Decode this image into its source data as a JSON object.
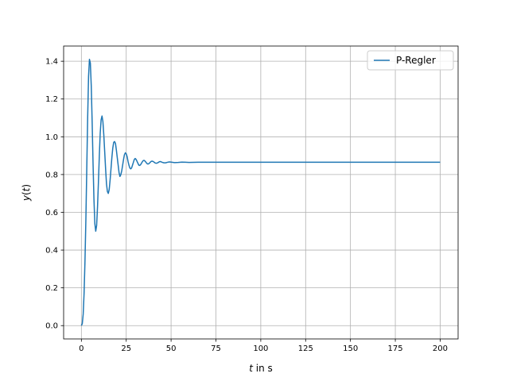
{
  "chart_data": {
    "type": "line",
    "title": "",
    "xlabel": {
      "var": "t",
      "suffix": " in s"
    },
    "ylabel": {
      "var": "y",
      "mid": "(",
      "arg": "t",
      "end": ")"
    },
    "xlim": [
      -9.9,
      210
    ],
    "ylim": [
      -0.0705,
      1.4805
    ],
    "xticks": [
      0,
      25,
      50,
      75,
      100,
      125,
      150,
      175,
      200
    ],
    "yticks": [
      0.0,
      0.2,
      0.4,
      0.6,
      0.8,
      1.0,
      1.2,
      1.4
    ],
    "xtick_labels": [
      "0",
      "25",
      "50",
      "75",
      "100",
      "125",
      "150",
      "175",
      "200"
    ],
    "ytick_labels": [
      "0.0",
      "0.2",
      "0.4",
      "0.6",
      "0.8",
      "1.0",
      "1.2",
      "1.4"
    ],
    "grid": true,
    "legend": {
      "placement": "top-right"
    },
    "series": [
      {
        "name": "P-Regler",
        "color": "#1f77b4",
        "points": [
          [
            0,
            0.0
          ],
          [
            0.5,
            0.01
          ],
          [
            1,
            0.06
          ],
          [
            1.5,
            0.17
          ],
          [
            2,
            0.34
          ],
          [
            2.5,
            0.56
          ],
          [
            3,
            0.83
          ],
          [
            3.5,
            1.1
          ],
          [
            4,
            1.32
          ],
          [
            4.5,
            1.41
          ],
          [
            5,
            1.39
          ],
          [
            5.5,
            1.27
          ],
          [
            6,
            1.08
          ],
          [
            6.5,
            0.86
          ],
          [
            7,
            0.67
          ],
          [
            7.5,
            0.54
          ],
          [
            8,
            0.5
          ],
          [
            8.5,
            0.53
          ],
          [
            9,
            0.63
          ],
          [
            9.5,
            0.76
          ],
          [
            10,
            0.9
          ],
          [
            10.5,
            1.02
          ],
          [
            11,
            1.09
          ],
          [
            11.5,
            1.11
          ],
          [
            12,
            1.08
          ],
          [
            12.5,
            1.01
          ],
          [
            13,
            0.92
          ],
          [
            13.5,
            0.83
          ],
          [
            14,
            0.75
          ],
          [
            14.5,
            0.71
          ],
          [
            15,
            0.7
          ],
          [
            15.5,
            0.72
          ],
          [
            16,
            0.77
          ],
          [
            16.5,
            0.83
          ],
          [
            17,
            0.89
          ],
          [
            17.5,
            0.94
          ],
          [
            18,
            0.97
          ],
          [
            18.5,
            0.975
          ],
          [
            19,
            0.965
          ],
          [
            19.5,
            0.93
          ],
          [
            20,
            0.89
          ],
          [
            20.5,
            0.85
          ],
          [
            21,
            0.81
          ],
          [
            21.5,
            0.79
          ],
          [
            22,
            0.8
          ],
          [
            22.5,
            0.82
          ],
          [
            23,
            0.85
          ],
          [
            23.5,
            0.88
          ],
          [
            24,
            0.905
          ],
          [
            24.5,
            0.915
          ],
          [
            25,
            0.91
          ],
          [
            25.5,
            0.895
          ],
          [
            26,
            0.87
          ],
          [
            26.5,
            0.85
          ],
          [
            27,
            0.835
          ],
          [
            27.5,
            0.83
          ],
          [
            28,
            0.835
          ],
          [
            28.5,
            0.85
          ],
          [
            29,
            0.865
          ],
          [
            29.5,
            0.88
          ],
          [
            30,
            0.885
          ],
          [
            30.5,
            0.88
          ],
          [
            31,
            0.87
          ],
          [
            31.5,
            0.86
          ],
          [
            32,
            0.85
          ],
          [
            32.5,
            0.848
          ],
          [
            33,
            0.852
          ],
          [
            33.5,
            0.86
          ],
          [
            34,
            0.868
          ],
          [
            34.5,
            0.874
          ],
          [
            35,
            0.875
          ],
          [
            35.5,
            0.871
          ],
          [
            36,
            0.865
          ],
          [
            36.5,
            0.859
          ],
          [
            37,
            0.856
          ],
          [
            37.5,
            0.857
          ],
          [
            38,
            0.861
          ],
          [
            38.5,
            0.866
          ],
          [
            39,
            0.87
          ],
          [
            39.5,
            0.871
          ],
          [
            40,
            0.869
          ],
          [
            40.5,
            0.866
          ],
          [
            41,
            0.862
          ],
          [
            41.5,
            0.86
          ],
          [
            42,
            0.86
          ],
          [
            42.5,
            0.862
          ],
          [
            43,
            0.865
          ],
          [
            43.5,
            0.868
          ],
          [
            44,
            0.869
          ],
          [
            44.5,
            0.867
          ],
          [
            45,
            0.865
          ],
          [
            46,
            0.862
          ],
          [
            47,
            0.862
          ],
          [
            48,
            0.865
          ],
          [
            49,
            0.867
          ],
          [
            50,
            0.866
          ],
          [
            52,
            0.863
          ],
          [
            54,
            0.864
          ],
          [
            56,
            0.866
          ],
          [
            58,
            0.865
          ],
          [
            60,
            0.864
          ],
          [
            65,
            0.865
          ],
          [
            70,
            0.865
          ],
          [
            80,
            0.865
          ],
          [
            100,
            0.865
          ],
          [
            125,
            0.865
          ],
          [
            150,
            0.865
          ],
          [
            175,
            0.865
          ],
          [
            200,
            0.865
          ]
        ]
      }
    ]
  }
}
